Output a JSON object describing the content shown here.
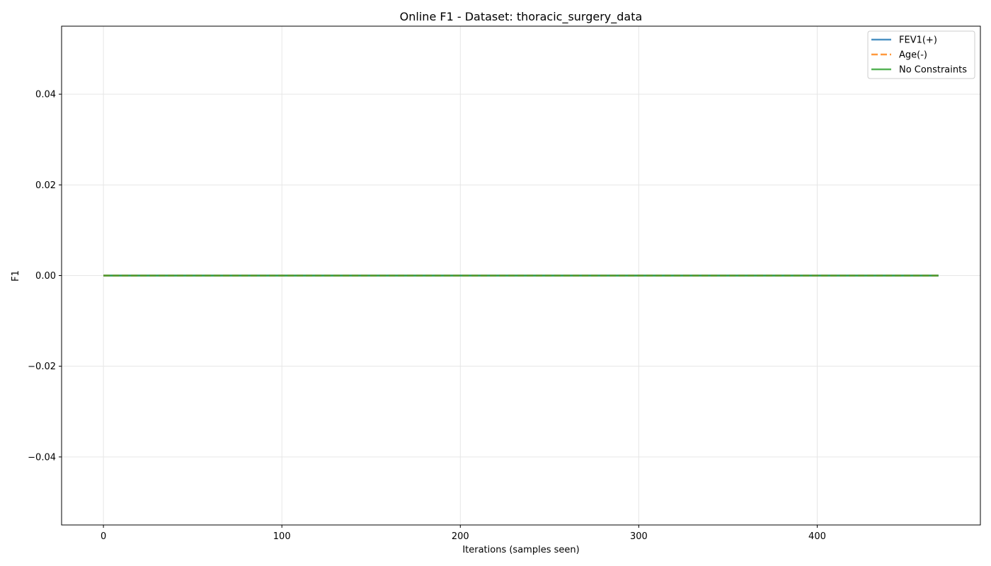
{
  "chart_data": {
    "type": "line",
    "title": "Online F1 - Dataset: thoracic_surgery_data",
    "xlabel": "Iterations (samples seen)",
    "ylabel": "F1",
    "xlim": [
      -23.45,
      491.45
    ],
    "ylim": [
      -0.055,
      0.055
    ],
    "xticks": [
      0,
      100,
      200,
      300,
      400
    ],
    "xtick_labels": [
      "0",
      "100",
      "200",
      "300",
      "400"
    ],
    "yticks": [
      -0.04,
      -0.02,
      0.0,
      0.02,
      0.04
    ],
    "ytick_labels": [
      "−0.04",
      "−0.02",
      "0.00",
      "0.02",
      "0.04"
    ],
    "grid": true,
    "legend_position": "top-right",
    "series": [
      {
        "name": "FEV1(+)",
        "color": "#1f77b4",
        "dash": "solid",
        "x": [
          0,
          468
        ],
        "y": [
          0.0,
          0.0
        ]
      },
      {
        "name": "Age(-)",
        "color": "#ff7f0e",
        "dash": "dashed",
        "x": [
          0,
          468
        ],
        "y": [
          0.0,
          0.0
        ]
      },
      {
        "name": "No Constraints",
        "color": "#2ca02c",
        "dash": "solid",
        "x": [
          0,
          468
        ],
        "y": [
          0.0,
          0.0
        ]
      }
    ]
  }
}
